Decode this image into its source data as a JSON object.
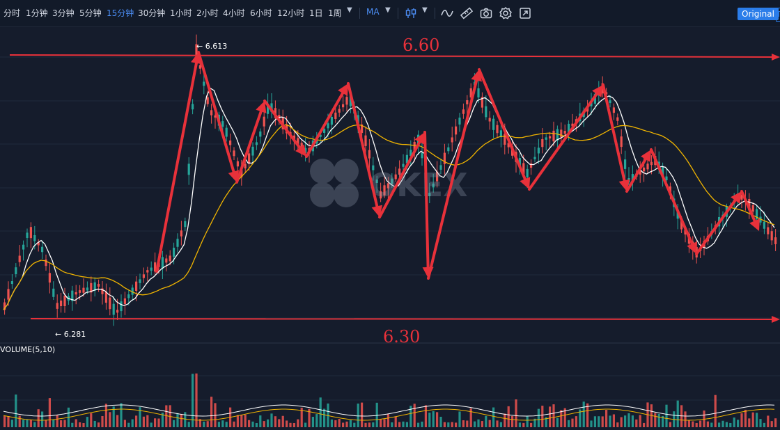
{
  "toolbar": {
    "intervals": [
      "分时",
      "1分钟",
      "3分钟",
      "5分钟",
      "15分钟",
      "30分钟",
      "1小时",
      "2小时",
      "4小时",
      "6小时",
      "12小时",
      "1日",
      "1周"
    ],
    "active_interval": "15分钟",
    "indicator": "MA",
    "icons": [
      "candle-style-icon",
      "line-tool-icon",
      "ruler-icon",
      "camera-icon",
      "settings-icon",
      "fullscreen-icon"
    ],
    "original_label": "Original",
    "tradingview_label": "T"
  },
  "chart": {
    "watermark": "OKEX",
    "high_marker": "← 6.613",
    "low_marker": "← 6.281",
    "volume_label": "VOLUME(5,10)",
    "annotations": {
      "resistance": "6.60",
      "support": "6.30"
    },
    "colors": {
      "up": "#26a69a",
      "down": "#ef5350",
      "ma_fast": "#ffffff",
      "ma_slow": "#f0b400",
      "annotation": "#e8313a",
      "background": "#151c2c",
      "toolbar": "#121a29",
      "accent": "#4c8ef5"
    }
  }
}
